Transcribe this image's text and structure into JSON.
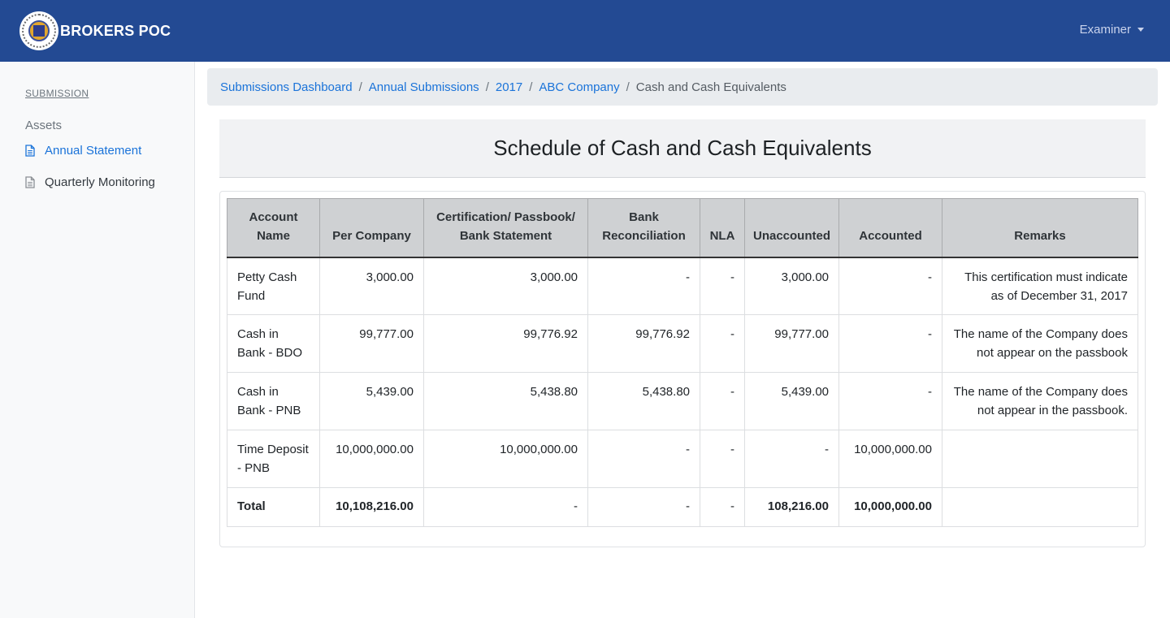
{
  "app": {
    "brand": "BROKERS POC",
    "user_menu_label": "Examiner"
  },
  "sidebar": {
    "heading": "SUBMISSION",
    "group": "Assets",
    "items": [
      {
        "label": "Annual Statement",
        "active": true
      },
      {
        "label": "Quarterly Monitoring",
        "active": false
      }
    ]
  },
  "breadcrumb": [
    {
      "label": "Submissions Dashboard"
    },
    {
      "label": "Annual Submissions"
    },
    {
      "label": "2017"
    },
    {
      "label": "ABC Company"
    },
    {
      "label": "Cash and Cash Equivalents"
    }
  ],
  "page_title": "Schedule of Cash and Cash Equivalents",
  "table": {
    "headers": [
      "Account Name",
      "Per Company",
      "Certification/ Passbook/ Bank Statement",
      "Bank Reconciliation",
      "NLA",
      "Unaccounted",
      "Accounted",
      "Remarks"
    ],
    "rows": [
      [
        "Petty Cash Fund",
        "3,000.00",
        "3,000.00",
        "-",
        "-",
        "3,000.00",
        "-",
        "This certification must indicate as of December 31, 2017"
      ],
      [
        "Cash in Bank - BDO",
        "99,777.00",
        "99,776.92",
        "99,776.92",
        "-",
        "99,777.00",
        "-",
        "The name of the Company does not appear on the passbook"
      ],
      [
        "Cash in Bank - PNB",
        "5,439.00",
        "5,438.80",
        "5,438.80",
        "-",
        "5,439.00",
        "-",
        "The name of the Company does not appear in the passbook."
      ],
      [
        "Time Deposit - PNB",
        "10,000,000.00",
        "10,000,000.00",
        "-",
        "-",
        "-",
        "10,000,000.00",
        ""
      ]
    ],
    "total": [
      "Total",
      "10,108,216.00",
      "-",
      "-",
      "-",
      "108,216.00",
      "10,000,000.00",
      ""
    ]
  },
  "colors": {
    "navbar": "#234a93",
    "link": "#1a73d9",
    "sidebar_bg": "#f8f9fa"
  }
}
